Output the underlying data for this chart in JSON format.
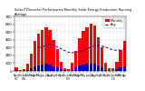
{
  "title": "Solar PV/Inverter Performance Monthly Solar Energy Production Running Average",
  "months": [
    "Nov\n'07",
    "Dec",
    "Jan\n'08",
    "Feb",
    "Mar",
    "Apr",
    "May",
    "Jun",
    "Jul",
    "Aug",
    "Sep",
    "Oct",
    "Nov",
    "Dec",
    "Jan\n'09",
    "Feb",
    "Mar",
    "Apr",
    "May",
    "Jun",
    "Jul",
    "Aug",
    "Sep",
    "Oct",
    "Nov",
    "Dec",
    "Jan\n'10",
    "Feb",
    "Mar",
    "Apr"
  ],
  "production": [
    45,
    10,
    18,
    95,
    220,
    380,
    480,
    520,
    560,
    530,
    400,
    280,
    120,
    40,
    25,
    110,
    260,
    420,
    510,
    560,
    610,
    580,
    430,
    300,
    110,
    35,
    30,
    120,
    270,
    390
  ],
  "running_avg": [
    null,
    null,
    null,
    null,
    null,
    null,
    300,
    310,
    330,
    340,
    330,
    310,
    285,
    260,
    240,
    235,
    238,
    248,
    265,
    285,
    305,
    320,
    325,
    320,
    305,
    285,
    270,
    265,
    268,
    278
  ],
  "small_vals": [
    8,
    2,
    3,
    15,
    35,
    60,
    75,
    82,
    88,
    83,
    63,
    44,
    19,
    6,
    4,
    17,
    41,
    66,
    80,
    88,
    96,
    91,
    68,
    47,
    17,
    5,
    5,
    19,
    42,
    61
  ],
  "bar_color": "#ff0000",
  "small_bar_color": "#0000cd",
  "avg_line_color": "#0000cd",
  "bg_color": "#ffffff",
  "grid_color": "#888888",
  "ylim": [
    0,
    700
  ],
  "yticks": [
    0,
    100,
    200,
    300,
    400,
    500,
    600,
    700
  ],
  "ylabel_fontsize": 3.0,
  "xlabel_fontsize": 2.2,
  "title_fontsize": 2.5,
  "legend_fontsize": 2.5
}
